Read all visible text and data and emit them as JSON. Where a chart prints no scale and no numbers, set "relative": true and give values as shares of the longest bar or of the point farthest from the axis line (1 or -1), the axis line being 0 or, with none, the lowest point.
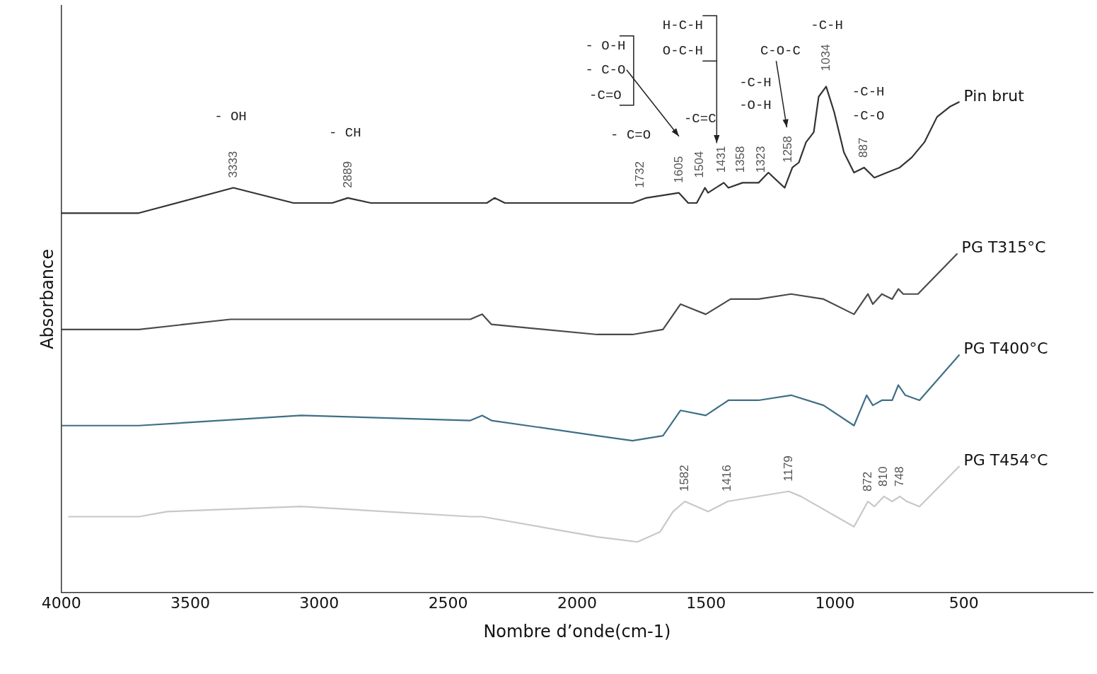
{
  "chart_data": {
    "type": "line",
    "relative": true,
    "xlabel": "Nombre d’onde(cm-1)",
    "ylabel": "Absorbance",
    "xlim": [
      4000,
      0
    ],
    "xticks": [
      4000,
      3500,
      3000,
      2500,
      2000,
      1500,
      1000,
      500
    ],
    "grid": false,
    "marker": "none",
    "line_style": "solid",
    "series": [
      {
        "name": "Pin brut",
        "color": "#333333",
        "x": [
          4000,
          3700,
          3333,
          3100,
          2950,
          2889,
          2800,
          2350,
          2320,
          2280,
          1922,
          1785,
          1732,
          1605,
          1569,
          1536,
          1504,
          1492,
          1431,
          1413,
          1358,
          1323,
          1296,
          1258,
          1195,
          1165,
          1140,
          1112,
          1082,
          1063,
          1034,
          1003,
          965,
          926,
          887,
          847,
          798,
          749,
          702,
          653,
          604,
          555,
          517
        ],
        "values": [
          0.75,
          0.75,
          0.8,
          0.77,
          0.77,
          0.78,
          0.77,
          0.77,
          0.78,
          0.77,
          0.77,
          0.77,
          0.78,
          0.79,
          0.77,
          0.77,
          0.8,
          0.79,
          0.81,
          0.8,
          0.81,
          0.81,
          0.81,
          0.83,
          0.8,
          0.84,
          0.85,
          0.89,
          0.91,
          0.98,
          1.0,
          0.95,
          0.87,
          0.83,
          0.84,
          0.82,
          0.83,
          0.84,
          0.86,
          0.89,
          0.94,
          0.96,
          0.97
        ]
      },
      {
        "name": "PG T315°C",
        "color": "#4a4a4a",
        "x": [
          4000,
          3699,
          3344,
          3070,
          2660,
          2414,
          2368,
          2332,
          1922,
          1785,
          1667,
          1599,
          1550,
          1501,
          1405,
          1296,
          1170,
          1044,
          926,
          872,
          853,
          818,
          778,
          754,
          735,
          678,
          525
        ],
        "values": [
          0.52,
          0.52,
          0.54,
          0.54,
          0.54,
          0.54,
          0.55,
          0.53,
          0.51,
          0.51,
          0.52,
          0.57,
          0.56,
          0.55,
          0.58,
          0.58,
          0.59,
          0.58,
          0.55,
          0.59,
          0.57,
          0.59,
          0.58,
          0.6,
          0.59,
          0.59,
          0.67
        ]
      },
      {
        "name": "PG T400°C",
        "color": "#3f6f86",
        "x": [
          4000,
          3699,
          3070,
          2414,
          2368,
          2332,
          1922,
          1785,
          1667,
          1599,
          1501,
          1413,
          1296,
          1170,
          1044,
          926,
          877,
          853,
          818,
          778,
          754,
          727,
          672,
          517
        ],
        "values": [
          0.33,
          0.33,
          0.35,
          0.34,
          0.35,
          0.34,
          0.31,
          0.3,
          0.31,
          0.36,
          0.35,
          0.38,
          0.38,
          0.39,
          0.37,
          0.33,
          0.39,
          0.37,
          0.38,
          0.38,
          0.41,
          0.39,
          0.38,
          0.47
        ]
      },
      {
        "name": "PG T454°C",
        "color": "#c8c8c8",
        "x": [
          3973,
          3699,
          3590,
          3070,
          2414,
          2368,
          1922,
          1766,
          1678,
          1628,
          1582,
          1492,
          1416,
          1179,
          1132,
          926,
          872,
          847,
          810,
          778,
          748,
          721,
          672,
          517
        ],
        "values": [
          0.15,
          0.15,
          0.16,
          0.17,
          0.15,
          0.15,
          0.11,
          0.1,
          0.12,
          0.16,
          0.18,
          0.16,
          0.18,
          0.2,
          0.19,
          0.13,
          0.18,
          0.17,
          0.19,
          0.18,
          0.19,
          0.18,
          0.17,
          0.25
        ]
      }
    ],
    "annotations": [
      {
        "text": "3333",
        "x": 3333,
        "y": 0.8
      },
      {
        "text": "2889",
        "x": 2889,
        "y": 0.78
      },
      {
        "text": "1732",
        "x": 1732,
        "y": 0.78
      },
      {
        "text": "1605",
        "x": 1605,
        "y": 0.79
      },
      {
        "text": "1504",
        "x": 1504,
        "y": 0.8
      },
      {
        "text": "1431",
        "x": 1431,
        "y": 0.81
      },
      {
        "text": "1358",
        "x": 1358,
        "y": 0.81
      },
      {
        "text": "1323",
        "x": 1323,
        "y": 0.81
      },
      {
        "text": "1258",
        "x": 1258,
        "y": 0.83
      },
      {
        "text": "1034",
        "x": 1034,
        "y": 1.0
      },
      {
        "text": "887",
        "x": 887,
        "y": 0.84
      },
      {
        "text": "1582",
        "x": 1582,
        "y": 0.18
      },
      {
        "text": "1416",
        "x": 1416,
        "y": 0.18
      },
      {
        "text": "1179",
        "x": 1179,
        "y": 0.2
      },
      {
        "text": "872",
        "x": 872,
        "y": 0.18
      },
      {
        "text": "810",
        "x": 810,
        "y": 0.19
      },
      {
        "text": "748",
        "x": 748,
        "y": 0.19
      },
      "- OH",
      "- CH",
      "- C=O",
      "- O-H",
      "- C-O",
      "-C=O",
      "H-C-H",
      "O-C-H",
      "-C=C",
      "-C-H",
      "-O-H",
      "C-O-C",
      "-C-H",
      "-C-H",
      "-C-O"
    ]
  }
}
